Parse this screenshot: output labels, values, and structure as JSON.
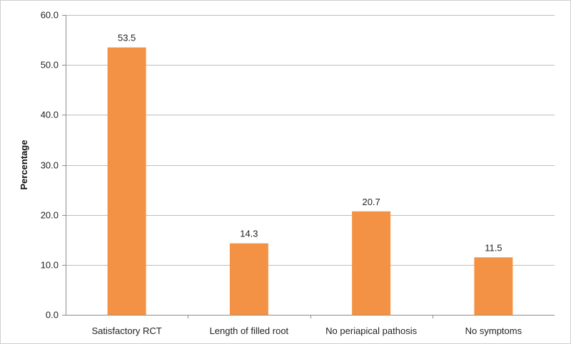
{
  "chart_data": {
    "type": "bar",
    "title": "",
    "xlabel": "",
    "ylabel": "Percentage",
    "categories": [
      "Satisfactory RCT",
      "Length of filled root",
      "No periapical pathosis",
      "No symptoms"
    ],
    "values": [
      53.5,
      14.3,
      20.7,
      11.5
    ],
    "value_labels": [
      "53.5",
      "14.3",
      "20.7",
      "11.5"
    ],
    "ylim": [
      0,
      60
    ],
    "yticks": [
      0,
      10,
      20,
      30,
      40,
      50,
      60
    ],
    "ytick_labels": [
      "0.0",
      "10.0",
      "20.0",
      "30.0",
      "40.0",
      "50.0",
      "60.0"
    ],
    "grid": true,
    "legend": "none",
    "bar_color": "#f39244",
    "grid_color": "#bdbdbd",
    "axis_color": "#8c8c8c"
  }
}
